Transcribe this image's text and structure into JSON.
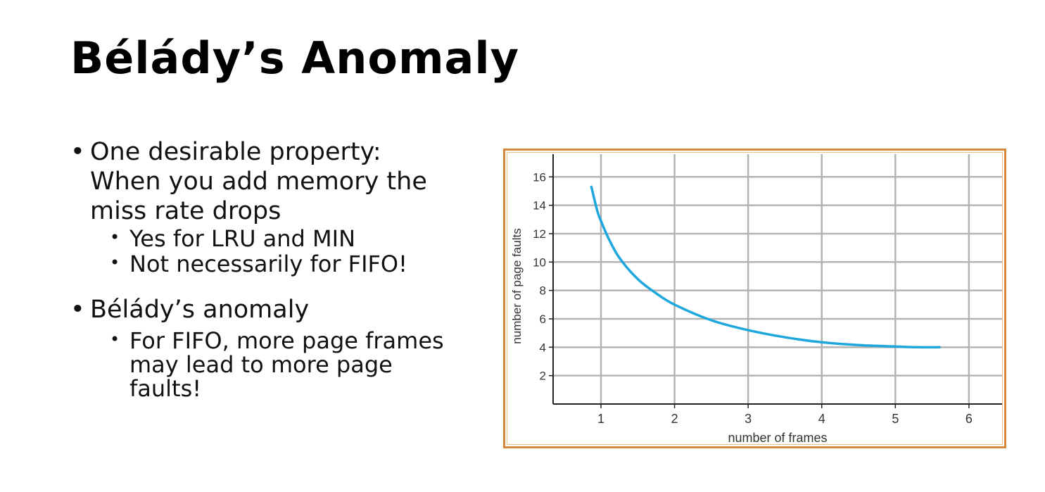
{
  "slide": {
    "title": "Bélády’s Anomaly"
  },
  "bullets": [
    {
      "text_lines": [
        "One desirable property:",
        "When you add memory the",
        "miss rate drops"
      ],
      "sub": [
        "Yes for LRU and MIN",
        "Not necessarily for FIFO!"
      ]
    },
    {
      "text_lines": [
        "Bélády’s anomaly"
      ],
      "sub_lines": [
        "For FIFO, more page frames",
        "may lead to more page",
        "faults!"
      ]
    }
  ],
  "colors": {
    "curve": "#1ea7dc",
    "frame_border": "#d88a3c",
    "grid": "#b3b3b3"
  },
  "chart_data": {
    "type": "line",
    "xlabel": "number of frames",
    "ylabel": "number of page faults",
    "xlim": [
      0.35,
      6.45
    ],
    "ylim": [
      0,
      17.6
    ],
    "x_ticks": [
      1,
      2,
      3,
      4,
      5,
      6
    ],
    "y_ticks": [
      2,
      4,
      6,
      8,
      10,
      12,
      14,
      16
    ],
    "grid": true,
    "legend": "none",
    "series": [
      {
        "x": [
          0.87,
          0.95,
          1.0,
          1.1,
          1.25,
          1.5,
          1.75,
          2.0,
          2.5,
          3.0,
          3.5,
          4.0,
          4.5,
          5.0,
          5.3,
          5.6
        ],
        "y": [
          15.3,
          13.6,
          12.9,
          11.7,
          10.3,
          8.8,
          7.8,
          7.0,
          5.9,
          5.2,
          4.7,
          4.35,
          4.15,
          4.05,
          4.0,
          4.0
        ]
      }
    ]
  }
}
